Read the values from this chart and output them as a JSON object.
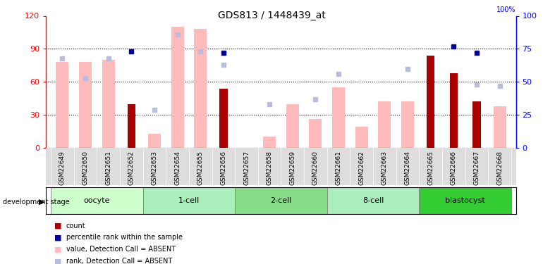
{
  "title": "GDS813 / 1448439_at",
  "samples": [
    "GSM22649",
    "GSM22650",
    "GSM22651",
    "GSM22652",
    "GSM22653",
    "GSM22654",
    "GSM22655",
    "GSM22656",
    "GSM22657",
    "GSM22658",
    "GSM22659",
    "GSM22660",
    "GSM22661",
    "GSM22662",
    "GSM22663",
    "GSM22664",
    "GSM22665",
    "GSM22666",
    "GSM22667",
    "GSM22668"
  ],
  "count": [
    null,
    null,
    null,
    40,
    null,
    null,
    null,
    54,
    null,
    null,
    null,
    null,
    null,
    null,
    null,
    null,
    84,
    68,
    42,
    null
  ],
  "percentile_rank": [
    null,
    null,
    null,
    73,
    null,
    null,
    null,
    72,
    null,
    null,
    null,
    null,
    null,
    null,
    null,
    null,
    null,
    77,
    72,
    null
  ],
  "value_absent": [
    78,
    78,
    80,
    null,
    13,
    110,
    108,
    null,
    null,
    10,
    40,
    26,
    55,
    19,
    42,
    42,
    null,
    null,
    null,
    38
  ],
  "rank_absent": [
    68,
    53,
    68,
    null,
    29,
    86,
    73,
    63,
    null,
    33,
    null,
    37,
    56,
    null,
    null,
    60,
    null,
    null,
    48,
    47
  ],
  "stage_list": [
    "oocyte",
    "1-cell",
    "2-cell",
    "8-cell",
    "blastocyst"
  ],
  "stage_ranges": [
    [
      0,
      4
    ],
    [
      4,
      8
    ],
    [
      8,
      12
    ],
    [
      12,
      16
    ],
    [
      16,
      20
    ]
  ],
  "stage_colors": [
    "#ccffcc",
    "#aaeebb",
    "#88dd88",
    "#aaeebb",
    "#33cc33"
  ],
  "ylim_left": [
    0,
    120
  ],
  "ylim_right": [
    0,
    100
  ],
  "yticks_left": [
    0,
    30,
    60,
    90,
    120
  ],
  "yticks_right": [
    0,
    25,
    50,
    75,
    100
  ],
  "bar_color_count": "#aa0000",
  "bar_color_rank": "#000099",
  "bar_color_value_absent": "#ffbbbb",
  "bar_color_rank_absent": "#bbbbdd",
  "background_color": "#ffffff",
  "xticklabel_bg": "#dddddd",
  "legend_items": [
    {
      "color": "#aa0000",
      "label": "count"
    },
    {
      "color": "#000099",
      "label": "percentile rank within the sample"
    },
    {
      "color": "#ffbbbb",
      "label": "value, Detection Call = ABSENT"
    },
    {
      "color": "#bbbbdd",
      "label": "rank, Detection Call = ABSENT"
    }
  ]
}
